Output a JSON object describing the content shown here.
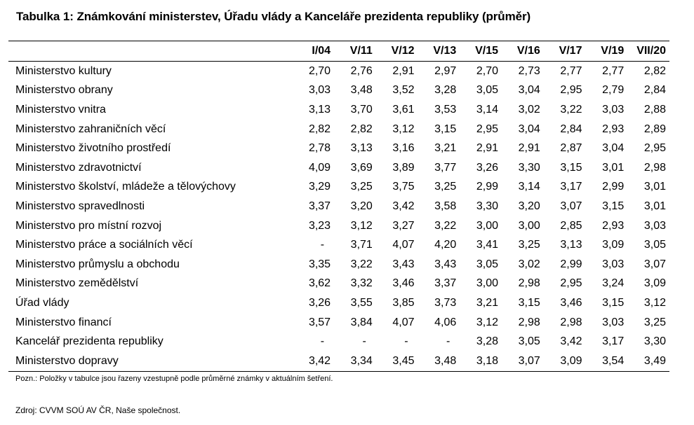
{
  "title": "Tabulka 1: Známkování ministerstev, Úřadu vlády a Kanceláře prezidenta republiky (průměr)",
  "table": {
    "columns": [
      "I/04",
      "V/11",
      "V/12",
      "V/13",
      "V/15",
      "V/16",
      "V/17",
      "V/19",
      "VII/20"
    ],
    "rows": [
      {
        "name": "Ministerstvo kultury",
        "values": [
          "2,70",
          "2,76",
          "2,91",
          "2,97",
          "2,70",
          "2,73",
          "2,77",
          "2,77",
          "2,82"
        ]
      },
      {
        "name": "Ministerstvo obrany",
        "values": [
          "3,03",
          "3,48",
          "3,52",
          "3,28",
          "3,05",
          "3,04",
          "2,95",
          "2,79",
          "2,84"
        ]
      },
      {
        "name": "Ministerstvo vnitra",
        "values": [
          "3,13",
          "3,70",
          "3,61",
          "3,53",
          "3,14",
          "3,02",
          "3,22",
          "3,03",
          "2,88"
        ]
      },
      {
        "name": "Ministerstvo zahraničních věcí",
        "values": [
          "2,82",
          "2,82",
          "3,12",
          "3,15",
          "2,95",
          "3,04",
          "2,84",
          "2,93",
          "2,89"
        ]
      },
      {
        "name": "Ministerstvo životního prostředí",
        "values": [
          "2,78",
          "3,13",
          "3,16",
          "3,21",
          "2,91",
          "2,91",
          "2,87",
          "3,04",
          "2,95"
        ]
      },
      {
        "name": "Ministerstvo zdravotnictví",
        "values": [
          "4,09",
          "3,69",
          "3,89",
          "3,77",
          "3,26",
          "3,30",
          "3,15",
          "3,01",
          "2,98"
        ]
      },
      {
        "name": "Ministerstvo školství, mládeže a tělovýchovy",
        "values": [
          "3,29",
          "3,25",
          "3,75",
          "3,25",
          "2,99",
          "3,14",
          "3,17",
          "2,99",
          "3,01"
        ]
      },
      {
        "name": "Ministerstvo spravedlnosti",
        "values": [
          "3,37",
          "3,20",
          "3,42",
          "3,58",
          "3,30",
          "3,20",
          "3,07",
          "3,15",
          "3,01"
        ]
      },
      {
        "name": "Ministerstvo pro místní rozvoj",
        "values": [
          "3,23",
          "3,12",
          "3,27",
          "3,22",
          "3,00",
          "3,00",
          "2,85",
          "2,93",
          "3,03"
        ]
      },
      {
        "name": "Ministerstvo práce a sociálních věcí",
        "values": [
          "-",
          "3,71",
          "4,07",
          "4,20",
          "3,41",
          "3,25",
          "3,13",
          "3,09",
          "3,05"
        ]
      },
      {
        "name": "Ministerstvo průmyslu a obchodu",
        "values": [
          "3,35",
          "3,22",
          "3,43",
          "3,43",
          "3,05",
          "3,02",
          "2,99",
          "3,03",
          "3,07"
        ]
      },
      {
        "name": "Ministerstvo zemědělství",
        "values": [
          "3,62",
          "3,32",
          "3,46",
          "3,37",
          "3,00",
          "2,98",
          "2,95",
          "3,24",
          "3,09"
        ]
      },
      {
        "name": "Úřad vlády",
        "values": [
          "3,26",
          "3,55",
          "3,85",
          "3,73",
          "3,21",
          "3,15",
          "3,46",
          "3,15",
          "3,12"
        ]
      },
      {
        "name": "Ministerstvo financí",
        "values": [
          "3,57",
          "3,84",
          "4,07",
          "4,06",
          "3,12",
          "2,98",
          "2,98",
          "3,03",
          "3,25"
        ]
      },
      {
        "name": "Kancelář prezidenta republiky",
        "values": [
          "-",
          "-",
          "-",
          "-",
          "3,28",
          "3,05",
          "3,42",
          "3,17",
          "3,30"
        ]
      },
      {
        "name": "Ministerstvo dopravy",
        "values": [
          "3,42",
          "3,34",
          "3,45",
          "3,48",
          "3,18",
          "3,07",
          "3,09",
          "3,54",
          "3,49"
        ]
      }
    ]
  },
  "note": "Pozn.: Položky v tabulce jsou řazeny vzestupně podle průměrné známky v aktuálním šetření.",
  "source": "Zdroj: CVVM SOÚ AV ČR, Naše společnost."
}
